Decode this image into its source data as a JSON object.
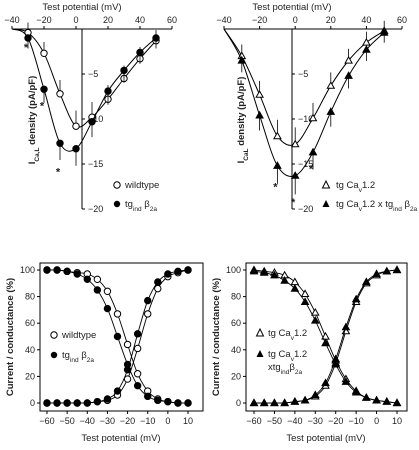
{
  "chart_data": [
    {
      "type": "line",
      "xlabel": "Test potential (mV)",
      "ylabel_main": "I",
      "ylabel_sub": "Ca,L",
      "ylabel_rest": " density (pA/pF)",
      "xlim": [
        -40,
        60
      ],
      "ylim": [
        -20,
        0
      ],
      "xticks": [
        -40,
        -20,
        0,
        20,
        40,
        60
      ],
      "yticks": [
        -5,
        -10,
        -15,
        -20
      ],
      "series": [
        {
          "name": "wildtype",
          "marker": "open-circle",
          "x": [
            -40,
            -30,
            -20,
            -10,
            0,
            10,
            20,
            30,
            40,
            50
          ],
          "y": [
            0,
            -0.4,
            -2.7,
            -7.2,
            -10.8,
            -9.8,
            -7.8,
            -5.5,
            -3.3,
            -1.3
          ]
        },
        {
          "name_main": "tg",
          "name_sub": "ind",
          "name_suffix": " β",
          "name_sub2": "2a",
          "marker": "filled-circle",
          "x": [
            -40,
            -30,
            -20,
            -10,
            0,
            10,
            20,
            30,
            40,
            50
          ],
          "y": [
            0,
            -1.0,
            -6.7,
            -12.7,
            -13.3,
            -10.3,
            -6.9,
            -4.6,
            -2.6,
            -1.0
          ]
        }
      ],
      "annotations": [
        {
          "text": "*",
          "x": -30,
          "y": -1.8
        },
        {
          "text": "*",
          "x": -20,
          "y": -8.3
        },
        {
          "text": "*",
          "x": -10,
          "y": -15.6
        }
      ]
    },
    {
      "type": "line",
      "xlabel": "Test potential (mV)",
      "ylabel_main": "I",
      "ylabel_sub": "CaL",
      "ylabel_rest": " density (pA/pF)",
      "xlim": [
        -40,
        60
      ],
      "ylim": [
        -20,
        0
      ],
      "xticks": [
        -40,
        -20,
        0,
        20,
        40,
        60
      ],
      "yticks": [
        -5,
        -10,
        -15,
        -20
      ],
      "series": [
        {
          "name_main": "tg Ca",
          "name_sub": "v",
          "name_suffix": "1.2",
          "marker": "open-triangle",
          "x": [
            -40,
            -30,
            -20,
            -10,
            0,
            10,
            20,
            30,
            40,
            50
          ],
          "y": [
            0,
            -3.0,
            -7.3,
            -11.9,
            -12.8,
            -9.9,
            -6.3,
            -3.5,
            -1.5,
            -0.2
          ]
        },
        {
          "name_main": "tg Ca",
          "name_sub": "v",
          "name_suffix": "1.2 x tg",
          "name_sub2": "ind",
          "name_suffix2": " β",
          "name_sub3": "2a",
          "marker": "filled-triangle",
          "x": [
            -40,
            -30,
            -20,
            -10,
            0,
            10,
            20,
            30,
            40,
            50
          ],
          "y": [
            0,
            -3.5,
            -9.6,
            -15.2,
            -16.3,
            -13.7,
            -9.2,
            -5.2,
            -2.3,
            -0.4
          ]
        }
      ],
      "annotations": [
        {
          "text": "*",
          "x": -10,
          "y": -17.3
        },
        {
          "text": "*",
          "x": 0,
          "y": -19.0
        },
        {
          "text": "*",
          "x": 10,
          "y": -15.3
        }
      ]
    },
    {
      "type": "line",
      "xlabel": "Test potential (mV)",
      "ylabel": "Current / conductance (%)",
      "xlim": [
        -60,
        10
      ],
      "ylim": [
        0,
        100
      ],
      "xticks": [
        -60,
        -50,
        -40,
        -30,
        -20,
        -10,
        0,
        10
      ],
      "yticks": [
        0,
        20,
        40,
        60,
        80,
        100
      ],
      "series": [
        {
          "name": "wildtype",
          "marker": "open-circle",
          "x": [
            -60,
            -55,
            -50,
            -45,
            -40,
            -35,
            -30,
            -25,
            -20,
            -15,
            -10,
            -5,
            0,
            5,
            10
          ],
          "inactivation": [
            100,
            100,
            99,
            98,
            97,
            93,
            84,
            67,
            44,
            22,
            9,
            3,
            1,
            0,
            0
          ],
          "activation": [
            0,
            0,
            0,
            0,
            0,
            1,
            2,
            6,
            18,
            41,
            67,
            86,
            95,
            98,
            100
          ]
        },
        {
          "name_main": "tg",
          "name_sub": "ind",
          "name_suffix": " β",
          "name_sub2": "2a",
          "marker": "filled-circle",
          "x": [
            -60,
            -55,
            -50,
            -45,
            -40,
            -35,
            -30,
            -25,
            -20,
            -15,
            -10,
            -5,
            0,
            5,
            10
          ],
          "inactivation": [
            100,
            100,
            99,
            97,
            93,
            85,
            71,
            50,
            29,
            13,
            5,
            2,
            1,
            0,
            0
          ],
          "activation": [
            0,
            0,
            0,
            0,
            0,
            1,
            3,
            9,
            25,
            52,
            77,
            91,
            97,
            99,
            100
          ]
        }
      ]
    },
    {
      "type": "line",
      "xlabel": "Test potential (mV)",
      "ylabel": "Current / conductance (%)",
      "xlim": [
        -60,
        10
      ],
      "ylim": [
        0,
        100
      ],
      "xticks": [
        -60,
        -50,
        -40,
        -30,
        -20,
        -10,
        0,
        10
      ],
      "yticks": [
        0,
        20,
        40,
        60,
        80,
        100
      ],
      "series": [
        {
          "name_main": "tg Ca",
          "name_sub": "v",
          "name_suffix": "1.2",
          "marker": "open-triangle",
          "x": [
            -60,
            -55,
            -50,
            -45,
            -40,
            -35,
            -30,
            -25,
            -20,
            -15,
            -10,
            -5,
            0,
            5,
            10
          ],
          "inactivation": [
            100,
            99,
            98,
            96,
            91,
            82,
            68,
            50,
            32,
            18,
            9,
            4,
            2,
            1,
            0
          ],
          "activation": [
            0,
            0,
            0,
            0,
            1,
            2,
            5,
            13,
            30,
            54,
            76,
            90,
            96,
            99,
            100
          ]
        },
        {
          "name_main": "tg Ca",
          "name_sub": "v",
          "name_suffix": "1.2",
          "name_line2": "xtg",
          "name_line2_sub": "ind",
          "name_line2_suffix": "β",
          "name_line2_sub2": "2a",
          "marker": "filled-triangle",
          "x": [
            -60,
            -55,
            -50,
            -45,
            -40,
            -35,
            -30,
            -25,
            -20,
            -15,
            -10,
            -5,
            0,
            5,
            10
          ],
          "inactivation": [
            99,
            98,
            96,
            92,
            86,
            76,
            62,
            45,
            29,
            16,
            8,
            4,
            2,
            1,
            0
          ],
          "activation": [
            0,
            0,
            0,
            0,
            1,
            2,
            6,
            15,
            33,
            57,
            78,
            91,
            97,
            99,
            100
          ]
        }
      ]
    }
  ]
}
